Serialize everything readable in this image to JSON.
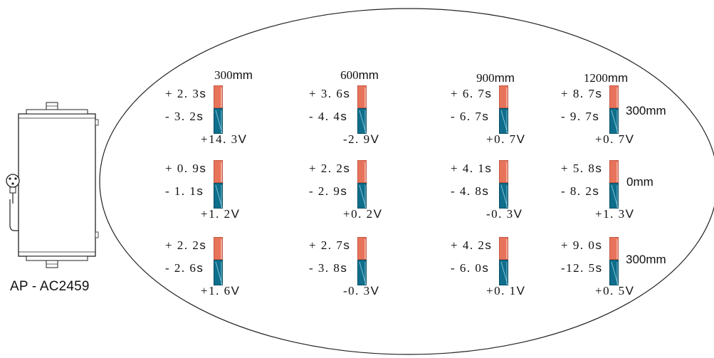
{
  "device": {
    "label": "AP - AC2459"
  },
  "columns": [
    "300",
    "600",
    "900",
    "1200"
  ],
  "unit_mm": "mm",
  "row_labels": [
    "300mm",
    "0mm",
    "300mm"
  ],
  "colors": {
    "positive": "#e8735b",
    "negative": "#0e6e8c",
    "outline": "#222222"
  },
  "grid": [
    [
      {
        "plus": "+ 2. 3",
        "minus": "- 3. 2",
        "volt": "+14. 3"
      },
      {
        "plus": "+ 3. 6",
        "minus": "- 4. 4",
        "volt": "-2. 9"
      },
      {
        "plus": "+ 6. 7",
        "minus": "- 6. 7",
        "volt": "+0. 7"
      },
      {
        "plus": "+ 8. 7",
        "minus": "- 9. 7",
        "volt": "+0. 7"
      }
    ],
    [
      {
        "plus": "+ 0. 9",
        "minus": "- 1. 1",
        "volt": "+1. 2"
      },
      {
        "plus": "+ 2. 2",
        "minus": "- 2. 9",
        "volt": "+0. 2"
      },
      {
        "plus": "+ 4. 1",
        "minus": "- 4. 8",
        "volt": "-0. 3"
      },
      {
        "plus": "+ 5. 8",
        "minus": "- 8. 2",
        "volt": "+1. 3"
      }
    ],
    [
      {
        "plus": "+ 2. 2",
        "minus": "- 2. 6",
        "volt": "+1. 6"
      },
      {
        "plus": "+ 2. 7",
        "minus": "- 3. 8",
        "volt": "-0. 3"
      },
      {
        "plus": "+ 4. 2",
        "minus": "- 6. 0",
        "volt": "+0. 1"
      },
      {
        "plus": "+ 9. 0",
        "minus": "-12. 5",
        "volt": "+0. 5"
      }
    ]
  ],
  "units": {
    "time": "s",
    "volt": "V"
  }
}
